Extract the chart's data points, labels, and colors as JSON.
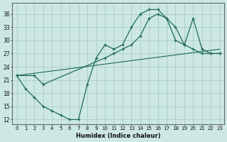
{
  "xlabel": "Humidex (Indice chaleur)",
  "bg_color": "#cde8e2",
  "grid_color": "#a8ccca",
  "line_color": "#1e6b5a",
  "xlim": [
    -0.5,
    23.5
  ],
  "ylim": [
    11,
    38.5
  ],
  "yticks": [
    12,
    15,
    18,
    21,
    24,
    27,
    30,
    33,
    36
  ],
  "xticks": [
    0,
    1,
    2,
    3,
    4,
    5,
    6,
    7,
    8,
    9,
    10,
    11,
    12,
    13,
    14,
    15,
    16,
    17,
    18,
    19,
    20,
    21,
    22,
    23
  ],
  "curve1_x": [
    0,
    1,
    2,
    3,
    4,
    5,
    6,
    7,
    8,
    9,
    10,
    11,
    12,
    13,
    14,
    15,
    16,
    17,
    18,
    19,
    20,
    21,
    22,
    23
  ],
  "curve1_y": [
    22,
    19,
    17,
    15,
    14,
    13,
    12,
    12,
    20,
    26,
    29,
    28,
    29,
    33,
    36,
    37,
    37,
    35,
    30,
    29,
    28,
    27,
    27,
    27
  ],
  "curve2_x": [
    0,
    2,
    3,
    10,
    11,
    12,
    13,
    14,
    15,
    16,
    17,
    18,
    19,
    20,
    21,
    22,
    23
  ],
  "curve2_y": [
    22,
    22,
    20,
    26,
    27,
    28,
    29,
    31,
    35,
    36,
    35,
    33,
    29,
    35,
    28,
    27,
    27
  ],
  "trend_x": [
    0,
    23
  ],
  "trend_y": [
    22,
    28
  ]
}
